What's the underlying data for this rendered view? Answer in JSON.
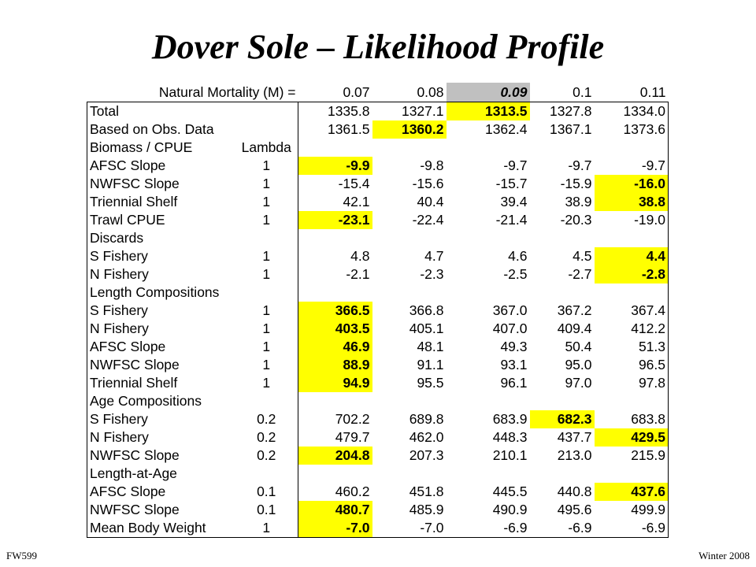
{
  "title": "Dover Sole – Likelihood Profile",
  "header": {
    "label": "Natural Mortality (M) =",
    "values": [
      "0.07",
      "0.08",
      "0.09",
      "0.1",
      "0.11"
    ],
    "selected_col": 2
  },
  "rows": [
    {
      "label": "Total",
      "lambda": "",
      "values": [
        "1335.8",
        "1327.1",
        "1313.5",
        "1327.8",
        "1334.0"
      ],
      "hl": 2,
      "indent": false
    },
    {
      "label": "Based on Obs. Data",
      "lambda": "",
      "values": [
        "1361.5",
        "1360.2",
        "1362.4",
        "1367.1",
        "1373.6"
      ],
      "hl": 1,
      "indent": true
    },
    {
      "label": "Biomass / CPUE",
      "lambda": "Lambda",
      "values": [
        "",
        "",
        "",
        "",
        ""
      ],
      "hl": -1,
      "indent": false
    },
    {
      "label": "AFSC Slope",
      "lambda": "1",
      "values": [
        "-9.9",
        "-9.8",
        "-9.7",
        "-9.7",
        "-9.7"
      ],
      "hl": 0,
      "indent": true
    },
    {
      "label": "NWFSC Slope",
      "lambda": "1",
      "values": [
        "-15.4",
        "-15.6",
        "-15.7",
        "-15.9",
        "-16.0"
      ],
      "hl": 4,
      "indent": true
    },
    {
      "label": "Triennial Shelf",
      "lambda": "1",
      "values": [
        "42.1",
        "40.4",
        "39.4",
        "38.9",
        "38.8"
      ],
      "hl": 4,
      "indent": true
    },
    {
      "label": "Trawl CPUE",
      "lambda": "1",
      "values": [
        "-23.1",
        "-22.4",
        "-21.4",
        "-20.3",
        "-19.0"
      ],
      "hl": 0,
      "indent": true
    },
    {
      "label": "Discards",
      "lambda": "",
      "values": [
        "",
        "",
        "",
        "",
        ""
      ],
      "hl": -1,
      "indent": false
    },
    {
      "label": "S Fishery",
      "lambda": "1",
      "values": [
        "4.8",
        "4.7",
        "4.6",
        "4.5",
        "4.4"
      ],
      "hl": 4,
      "indent": true
    },
    {
      "label": "N Fishery",
      "lambda": "1",
      "values": [
        "-2.1",
        "-2.3",
        "-2.5",
        "-2.7",
        "-2.8"
      ],
      "hl": 4,
      "indent": true
    },
    {
      "label": "Length Compositions",
      "lambda": "",
      "values": [
        "",
        "",
        "",
        "",
        ""
      ],
      "hl": -1,
      "indent": false
    },
    {
      "label": "S Fishery",
      "lambda": "1",
      "values": [
        "366.5",
        "366.8",
        "367.0",
        "367.2",
        "367.4"
      ],
      "hl": 0,
      "indent": true
    },
    {
      "label": "N Fishery",
      "lambda": "1",
      "values": [
        "403.5",
        "405.1",
        "407.0",
        "409.4",
        "412.2"
      ],
      "hl": 0,
      "indent": true
    },
    {
      "label": "AFSC Slope",
      "lambda": "1",
      "values": [
        "46.9",
        "48.1",
        "49.3",
        "50.4",
        "51.3"
      ],
      "hl": 0,
      "indent": true
    },
    {
      "label": "NWFSC Slope",
      "lambda": "1",
      "values": [
        "88.9",
        "91.1",
        "93.1",
        "95.0",
        "96.5"
      ],
      "hl": 0,
      "indent": true
    },
    {
      "label": "Triennial Shelf",
      "lambda": "1",
      "values": [
        "94.9",
        "95.5",
        "96.1",
        "97.0",
        "97.8"
      ],
      "hl": 0,
      "indent": true
    },
    {
      "label": "Age Compositions",
      "lambda": "",
      "values": [
        "",
        "",
        "",
        "",
        ""
      ],
      "hl": -1,
      "indent": false
    },
    {
      "label": "S Fishery",
      "lambda": "0.2",
      "values": [
        "702.2",
        "689.8",
        "683.9",
        "682.3",
        "683.8"
      ],
      "hl": 3,
      "indent": true
    },
    {
      "label": "N Fishery",
      "lambda": "0.2",
      "values": [
        "479.7",
        "462.0",
        "448.3",
        "437.7",
        "429.5"
      ],
      "hl": 4,
      "indent": true
    },
    {
      "label": "NWFSC Slope",
      "lambda": "0.2",
      "values": [
        "204.8",
        "207.3",
        "210.1",
        "213.0",
        "215.9"
      ],
      "hl": 0,
      "indent": true
    },
    {
      "label": "Length-at-Age",
      "lambda": "",
      "values": [
        "",
        "",
        "",
        "",
        ""
      ],
      "hl": -1,
      "indent": false
    },
    {
      "label": "AFSC Slope",
      "lambda": "0.1",
      "values": [
        "460.2",
        "451.8",
        "445.5",
        "440.8",
        "437.6"
      ],
      "hl": 4,
      "indent": true
    },
    {
      "label": "NWFSC Slope",
      "lambda": "0.1",
      "values": [
        "480.7",
        "485.9",
        "490.9",
        "495.6",
        "499.9"
      ],
      "hl": 0,
      "indent": true
    },
    {
      "label": "Mean Body Weight",
      "lambda": "1",
      "values": [
        "-7.0",
        "-7.0",
        "-6.9",
        "-6.9",
        "-6.9"
      ],
      "hl": 0,
      "indent": false
    }
  ],
  "footer": {
    "left": "FW599",
    "right": "Winter 2008"
  },
  "colors": {
    "highlight": "#ffff00",
    "selected_header": "#c0c0c0"
  }
}
